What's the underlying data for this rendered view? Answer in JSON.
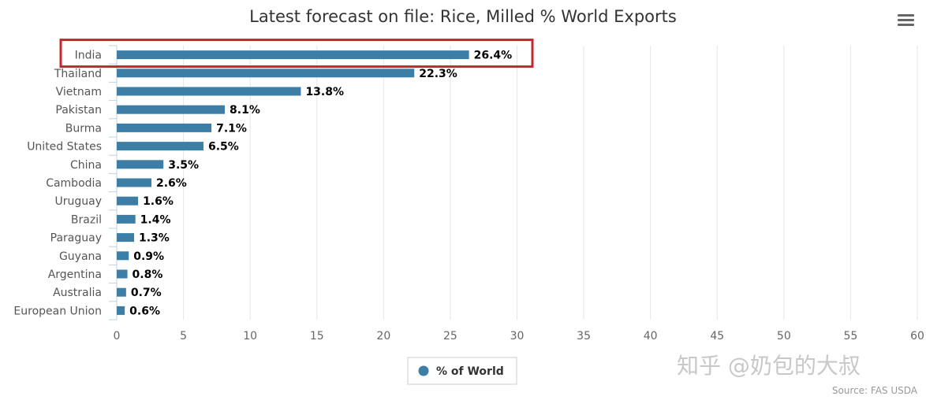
{
  "chart_data": {
    "type": "bar",
    "orientation": "horizontal",
    "title": "Latest forecast on file: Rice, Milled % World Exports",
    "categories": [
      "India",
      "Thailand",
      "Vietnam",
      "Pakistan",
      "Burma",
      "United States",
      "China",
      "Cambodia",
      "Uruguay",
      "Brazil",
      "Paraguay",
      "Guyana",
      "Argentina",
      "Australia",
      "European Union"
    ],
    "series": [
      {
        "name": "% of World",
        "values": [
          26.4,
          22.3,
          13.8,
          8.1,
          7.1,
          6.5,
          3.5,
          2.6,
          1.6,
          1.4,
          1.3,
          0.9,
          0.8,
          0.7,
          0.6
        ],
        "labels": [
          "26.4%",
          "22.3%",
          "13.8%",
          "8.1%",
          "7.1%",
          "6.5%",
          "3.5%",
          "2.6%",
          "1.6%",
          "1.4%",
          "1.3%",
          "0.9%",
          "0.8%",
          "0.7%",
          "0.6%"
        ],
        "color": "#3d7ea6"
      }
    ],
    "xlim": [
      0,
      60
    ],
    "xticks": [
      0,
      5,
      10,
      15,
      20,
      25,
      30,
      35,
      40,
      45,
      50,
      55,
      60
    ],
    "grid": true,
    "legend": "bottom-center",
    "highlighted_category": "India",
    "highlight_color": "#c0282d"
  },
  "credit": "Source: FAS USDA",
  "watermark": "知乎 @奶包的大叔",
  "menu_icon": "hamburger-menu-icon"
}
